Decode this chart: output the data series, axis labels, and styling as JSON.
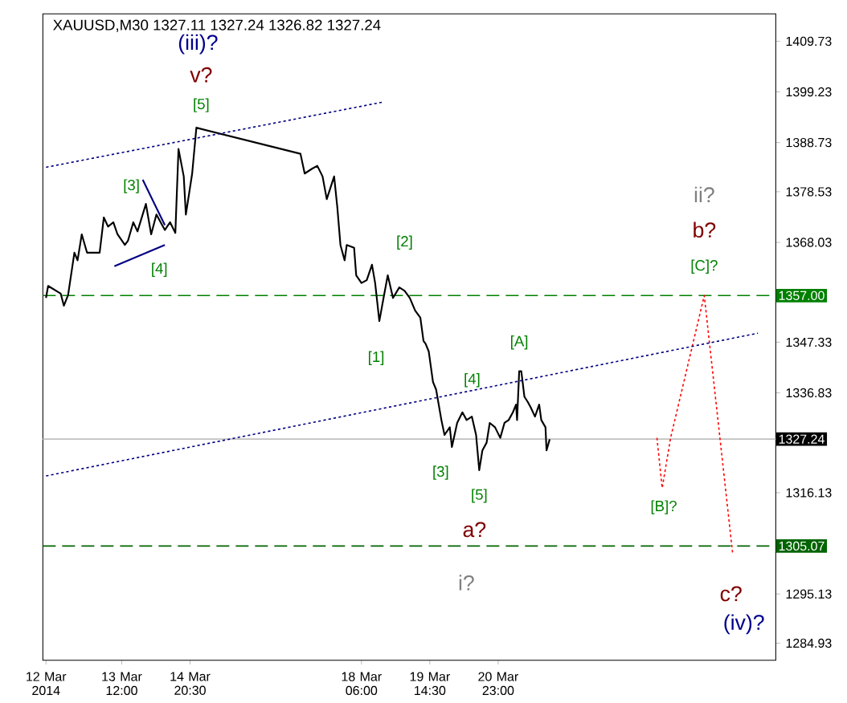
{
  "chart_data": {
    "type": "line",
    "title": "XAUUSD,M30  1327.11 1327.24 1326.82 1327.24",
    "xlim": [
      "2014-03-11T22:30",
      "2014-03-26T11:00"
    ],
    "ylim": [
      1281.4,
      1415.4
    ],
    "xticks": [
      {
        "value": "2014-03-12T00:00",
        "label": "12 Mar 2014"
      },
      {
        "value": "2014-03-13T12:00",
        "label": "13 Mar 12:00"
      },
      {
        "value": "2014-03-14T20:30",
        "label": "14 Mar 20:30"
      },
      {
        "value": "2014-03-18T06:00",
        "label": "18 Mar 06:00"
      },
      {
        "value": "2014-03-19T14:30",
        "label": "19 Mar 14:30"
      },
      {
        "value": "2014-03-20T23:00",
        "label": "20 Mar 23:00"
      }
    ],
    "yticks": [
      1409.73,
      1399.23,
      1388.73,
      1378.53,
      1368.03,
      1347.33,
      1336.83,
      1316.13,
      1295.13,
      1284.93
    ],
    "series": [
      {
        "color": "#000000",
        "line_style": "solid",
        "x": [
          "2014-03-12T00:00",
          "2014-03-12T01:00",
          "2014-03-12T07:00",
          "2014-03-12T08:30",
          "2014-03-12T10:30",
          "2014-03-12T13:30",
          "2014-03-12T15:00",
          "2014-03-12T17:00",
          "2014-03-12T19:30",
          "2014-03-13T01:30",
          "2014-03-13T03:30",
          "2014-03-13T05:30",
          "2014-03-13T08:00",
          "2014-03-13T10:00",
          "2014-03-13T13:30",
          "2014-03-13T15:00",
          "2014-03-13T17:30",
          "2014-03-13T19:30",
          "2014-03-13T23:30",
          "2014-03-14T02:00",
          "2014-03-14T04:30",
          "2014-03-14T06:30",
          "2014-03-14T08:30",
          "2014-03-14T11:00",
          "2014-03-14T13:30",
          "2014-03-14T15:00",
          "2014-03-14T17:30",
          "2014-03-14T18:30",
          "2014-03-14T21:30",
          "2014-03-14T23:30",
          "2014-03-17T01:00",
          "2014-03-17T03:00",
          "2014-03-17T06:30",
          "2014-03-17T09:00",
          "2014-03-17T11:30",
          "2014-03-17T13:30",
          "2014-03-17T17:00",
          "2014-03-17T18:30",
          "2014-03-17T20:00",
          "2014-03-17T22:00",
          "2014-03-17T23:00",
          "2014-03-18T02:30",
          "2014-03-18T03:30",
          "2014-03-18T06:00",
          "2014-03-18T08:30",
          "2014-03-18T11:00",
          "2014-03-18T12:30",
          "2014-03-18T14:30",
          "2014-03-18T16:30",
          "2014-03-18T18:30",
          "2014-03-18T21:00",
          "2014-03-19T00:00",
          "2014-03-19T02:30",
          "2014-03-19T05:00",
          "2014-03-19T07:30",
          "2014-03-19T10:00",
          "2014-03-19T11:30",
          "2014-03-19T12:30",
          "2014-03-19T14:00",
          "2014-03-19T16:00",
          "2014-03-19T17:30",
          "2014-03-19T20:00",
          "2014-03-19T21:30",
          "2014-03-20T00:00",
          "2014-03-20T01:00",
          "2014-03-20T03:30",
          "2014-03-20T06:00",
          "2014-03-20T08:00",
          "2014-03-20T10:30",
          "2014-03-20T12:30",
          "2014-03-20T14:00",
          "2014-03-20T15:30",
          "2014-03-20T17:30",
          "2014-03-20T19:00",
          "2014-03-20T21:30",
          "2014-03-21T00:00",
          "2014-03-21T02:00",
          "2014-03-21T04:00",
          "2014-03-21T06:00",
          "2014-03-21T07:30",
          "2014-03-21T08:00",
          "2014-03-21T09:00",
          "2014-03-21T10:00",
          "2014-03-21T11:30",
          "2014-03-21T13:00",
          "2014-03-21T14:30",
          "2014-03-21T16:30",
          "2014-03-21T18:30",
          "2014-03-21T19:30",
          "2014-03-21T21:30",
          "2014-03-21T22:00",
          "2014-03-21T23:30"
        ],
        "values": [
          1356.5,
          1359.0,
          1357.4,
          1354.9,
          1357.1,
          1365.9,
          1364.3,
          1369.7,
          1365.9,
          1365.9,
          1373.2,
          1371.3,
          1372.2,
          1369.7,
          1367.5,
          1368.4,
          1372.2,
          1370.3,
          1376.0,
          1369.7,
          1373.8,
          1372.2,
          1370.6,
          1372.2,
          1370.0,
          1387.4,
          1381.7,
          1373.8,
          1382.3,
          1391.8,
          1386.4,
          1382.3,
          1383.3,
          1383.9,
          1381.7,
          1377.0,
          1381.7,
          1375.4,
          1367.5,
          1364.3,
          1367.5,
          1366.9,
          1361.2,
          1359.6,
          1360.2,
          1363.4,
          1359.6,
          1351.7,
          1356.5,
          1361.2,
          1356.5,
          1358.7,
          1358.0,
          1356.5,
          1353.9,
          1352.4,
          1347.6,
          1347.0,
          1345.4,
          1339.1,
          1337.5,
          1331.2,
          1328.1,
          1329.7,
          1325.6,
          1330.6,
          1332.8,
          1331.2,
          1331.9,
          1328.1,
          1320.8,
          1324.9,
          1326.5,
          1330.6,
          1329.7,
          1327.5,
          1330.6,
          1331.2,
          1332.8,
          1334.4,
          1331.2,
          1341.3,
          1341.3,
          1336.0,
          1335.0,
          1333.8,
          1331.9,
          1334.4,
          1331.2,
          1329.7,
          1324.9,
          1327.2
        ]
      },
      {
        "color": "#ff0000",
        "line_style": "dotted",
        "x": [
          "2014-03-24T02:30",
          "2014-03-24T05:00",
          "2014-03-24T09:00",
          "2014-03-25T01:00",
          "2014-03-25T14:30"
        ],
        "values": [
          1327.5,
          1317.1,
          1327.5,
          1357.0,
          1303.5
        ]
      },
      {
        "color": "#000080",
        "line_style": "dotted",
        "x": [
          "2014-03-12T00:00",
          "2014-03-18T16:00"
        ],
        "values": [
          1383.6,
          1397.1
        ]
      },
      {
        "color": "#000080",
        "line_style": "dotted",
        "x": [
          "2014-03-12T00:00",
          "2014-03-26T02:30"
        ],
        "values": [
          1319.6,
          1349.2
        ]
      },
      {
        "color": "#000080",
        "line_style": "solid",
        "x": [
          "2014-03-13T22:00",
          "2014-03-14T08:30"
        ],
        "values": [
          1381.0,
          1371.6
        ]
      },
      {
        "color": "#000080",
        "line_style": "solid",
        "x": [
          "2014-03-13T08:30",
          "2014-03-14T08:30"
        ],
        "values": [
          1363.1,
          1367.5
        ]
      }
    ],
    "ref_lines": [
      {
        "axis": "y",
        "value": 1357.0,
        "label": "1357.00",
        "color": "#008000",
        "line_style": "dashed"
      },
      {
        "axis": "y",
        "value": 1327.24,
        "label": "1327.24",
        "color": "#c0c0c0",
        "line_style": "solid"
      },
      {
        "axis": "y",
        "value": 1305.07,
        "label": "1305.07",
        "color": "#006400",
        "line_style": "dashed"
      }
    ],
    "annotations": [
      "[3]",
      "[4]",
      "[5]",
      "v?",
      "(iii)?",
      "[2]",
      "[1]",
      "[4]",
      "[3]",
      "[5]",
      "a?",
      "i?",
      "[A]",
      "[B]?",
      "[C]?",
      "b?",
      "ii?",
      "c?",
      "(iv)?"
    ]
  }
}
